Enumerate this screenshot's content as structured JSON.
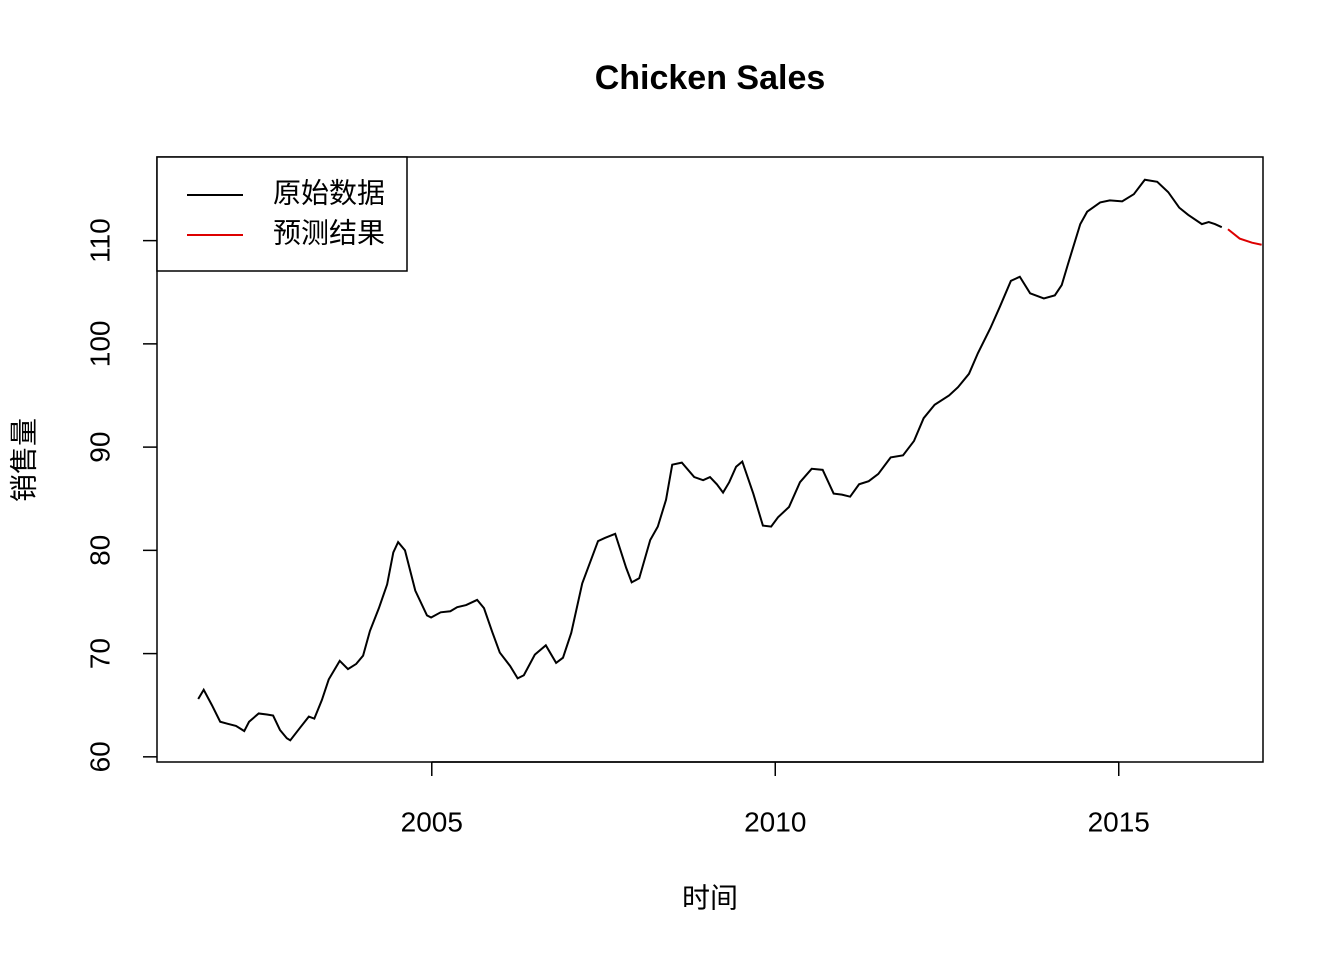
{
  "chart_data": {
    "type": "line",
    "title": "Chicken Sales",
    "x_label": "时间",
    "y_label": "销售量",
    "xlim": [
      2001.0,
      2017.1
    ],
    "ylim": [
      59.5,
      118.1
    ],
    "xticks": [
      2005,
      2010,
      2015
    ],
    "yticks": [
      60,
      70,
      80,
      90,
      100,
      110
    ],
    "legend": "top-left",
    "series": [
      {
        "name": "原始数据",
        "color": "#000000",
        "x": [
          2001.6,
          2001.68,
          2001.8,
          2001.92,
          2002.03,
          2002.15,
          2002.27,
          2002.34,
          2002.48,
          2002.6,
          2002.69,
          2002.79,
          2002.89,
          2002.94,
          2003.08,
          2003.21,
          2003.29,
          2003.4,
          2003.5,
          2003.66,
          2003.78,
          2003.9,
          2004.0,
          2004.1,
          2004.23,
          2004.35,
          2004.44,
          2004.51,
          2004.61,
          2004.76,
          2004.93,
          2004.99,
          2005.13,
          2005.27,
          2005.37,
          2005.5,
          2005.66,
          2005.76,
          2005.88,
          2005.99,
          2006.14,
          2006.25,
          2006.34,
          2006.5,
          2006.66,
          2006.81,
          2006.91,
          2007.03,
          2007.19,
          2007.42,
          2007.52,
          2007.67,
          2007.83,
          2007.91,
          2008.02,
          2008.18,
          2008.29,
          2008.41,
          2008.5,
          2008.64,
          2008.82,
          2008.95,
          2009.05,
          2009.15,
          2009.24,
          2009.33,
          2009.43,
          2009.52,
          2009.68,
          2009.82,
          2009.94,
          2010.04,
          2010.2,
          2010.36,
          2010.53,
          2010.69,
          2010.85,
          2010.97,
          2011.09,
          2011.22,
          2011.36,
          2011.5,
          2011.68,
          2011.86,
          2012.02,
          2012.16,
          2012.32,
          2012.53,
          2012.66,
          2012.82,
          2012.95,
          2013.13,
          2013.27,
          2013.43,
          2013.56,
          2013.71,
          2013.91,
          2014.07,
          2014.17,
          2014.26,
          2014.44,
          2014.54,
          2014.73,
          2014.87,
          2015.05,
          2015.22,
          2015.38,
          2015.56,
          2015.72,
          2015.88,
          2016.01,
          2016.21,
          2016.31,
          2016.4,
          2016.5
        ],
        "values": [
          65.6,
          66.5,
          65.0,
          63.4,
          63.2,
          63.0,
          62.5,
          63.4,
          64.2,
          64.1,
          64.0,
          62.6,
          61.8,
          61.6,
          62.8,
          63.9,
          63.7,
          65.5,
          67.5,
          69.3,
          68.5,
          69.0,
          69.8,
          72.2,
          74.4,
          76.7,
          79.8,
          80.8,
          80.0,
          76.1,
          73.7,
          73.5,
          74.0,
          74.1,
          74.5,
          74.7,
          75.2,
          74.4,
          72.1,
          70.1,
          68.8,
          67.6,
          67.9,
          69.9,
          70.8,
          69.1,
          69.6,
          72.0,
          76.8,
          80.9,
          81.2,
          81.6,
          78.3,
          76.9,
          77.3,
          81.0,
          82.3,
          84.9,
          88.3,
          88.5,
          87.1,
          86.8,
          87.1,
          86.4,
          85.6,
          86.6,
          88.1,
          88.6,
          85.5,
          82.4,
          82.3,
          83.2,
          84.2,
          86.6,
          87.9,
          87.8,
          85.5,
          85.4,
          85.2,
          86.4,
          86.7,
          87.4,
          89.0,
          89.2,
          90.6,
          92.8,
          94.1,
          95.0,
          95.8,
          97.1,
          99.1,
          101.5,
          103.6,
          106.1,
          106.5,
          104.9,
          104.4,
          104.7,
          105.7,
          107.7,
          111.6,
          112.8,
          113.7,
          113.9,
          113.8,
          114.5,
          115.9,
          115.7,
          114.7,
          113.2,
          112.5,
          111.6,
          111.8,
          111.6,
          111.3
        ]
      },
      {
        "name": "预测结果",
        "color": "#dd0000",
        "x": [
          2016.59,
          2016.76,
          2016.94,
          2017.08
        ],
        "values": [
          111.1,
          110.2,
          109.8,
          109.6
        ]
      }
    ]
  }
}
